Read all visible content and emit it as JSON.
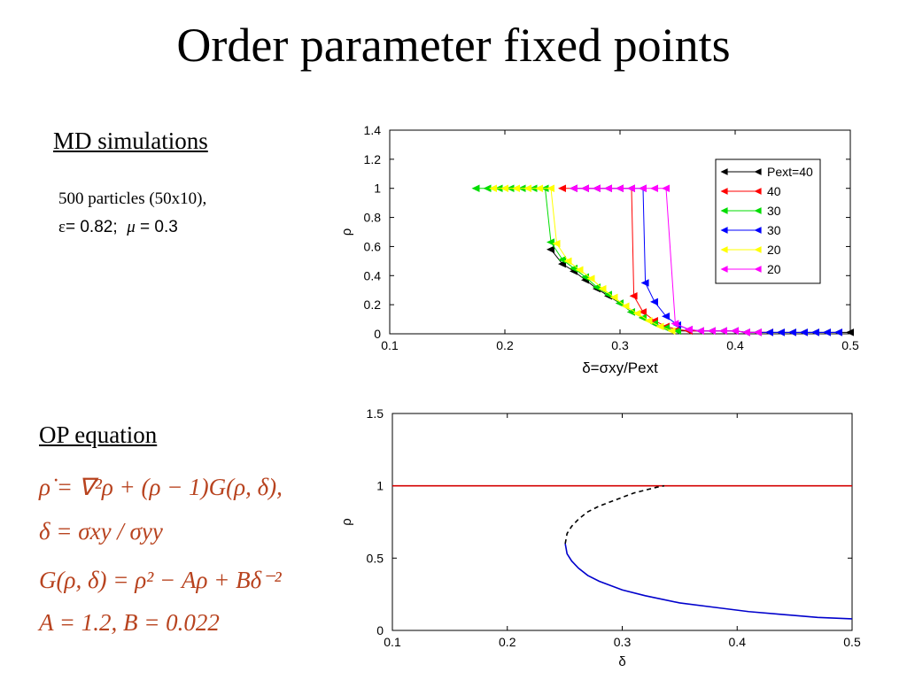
{
  "title": "Order parameter fixed points",
  "md": {
    "heading": "MD simulations",
    "line1": "500 particles (50x10),",
    "line2_eps": "ε",
    "line2_rest": "= 0.82;",
    "line2_mu": "μ",
    "line2_mu_val": "= 0.3"
  },
  "op": {
    "heading": "OP equation",
    "eq1": "ρ̇ = ∇²ρ + (ρ − 1)G(ρ, δ),",
    "eq2": "δ = σxy / σyy",
    "eq3": "G(ρ, δ) = ρ² − Aρ + Bδ⁻²",
    "eq4": "A = 1.2, B = 0.022"
  },
  "chart_data": [
    {
      "type": "scatter",
      "xlabel": "δ=σxy/Pext",
      "ylabel": "ρ",
      "xlim": [
        0.1,
        0.5
      ],
      "ylim": [
        0,
        1.4
      ],
      "xticks": [
        "0.1",
        "0.2",
        "0.3",
        "0.4",
        "0.5"
      ],
      "yticks": [
        "0",
        "0.2",
        "0.4",
        "0.6",
        "0.8",
        "1",
        "1.2",
        "1.4"
      ],
      "legend_position": "top-right",
      "series": [
        {
          "name": "Pext=40",
          "color": "#000000",
          "x": [
            0.24,
            0.25,
            0.26,
            0.27,
            0.28,
            0.29,
            0.3,
            0.31,
            0.32,
            0.33,
            0.34,
            0.35,
            0.36,
            0.37,
            0.38,
            0.39,
            0.4,
            0.41,
            0.42,
            0.43,
            0.44,
            0.45,
            0.46,
            0.47,
            0.48,
            0.49,
            0.5
          ],
          "y": [
            0.58,
            0.48,
            0.43,
            0.37,
            0.31,
            0.26,
            0.21,
            0.15,
            0.11,
            0.07,
            0.04,
            0.02,
            0.02,
            0.02,
            0.02,
            0.02,
            0.02,
            0.01,
            0.01,
            0.01,
            0.01,
            0.01,
            0.01,
            0.01,
            0.01,
            0.01,
            0.01
          ]
        },
        {
          "name": "40",
          "color": "#ff0000",
          "x": [
            0.25,
            0.26,
            0.27,
            0.28,
            0.29,
            0.3,
            0.31,
            0.312,
            0.32,
            0.33,
            0.34,
            0.35,
            0.36,
            0.37,
            0.38,
            0.39,
            0.4,
            0.41,
            0.42,
            0.43
          ],
          "y": [
            1,
            1,
            1,
            1,
            1,
            1,
            1,
            0.26,
            0.15,
            0.09,
            0.05,
            0.03,
            0.02,
            0.02,
            0.02,
            0.02,
            0.02,
            0.01,
            0.01,
            0.01
          ]
        },
        {
          "name": "30",
          "color": "#00dd00",
          "x": [
            0.175,
            0.185,
            0.195,
            0.205,
            0.215,
            0.225,
            0.235,
            0.24,
            0.25,
            0.26,
            0.27,
            0.28,
            0.29,
            0.3,
            0.31,
            0.32,
            0.33,
            0.34,
            0.35
          ],
          "y": [
            1,
            1,
            1,
            1,
            1,
            1,
            1,
            0.63,
            0.51,
            0.45,
            0.39,
            0.32,
            0.27,
            0.21,
            0.15,
            0.11,
            0.07,
            0.04,
            0.02
          ]
        },
        {
          "name": "30",
          "color": "#0000ff",
          "x": [
            0.26,
            0.27,
            0.28,
            0.29,
            0.3,
            0.31,
            0.32,
            0.322,
            0.33,
            0.34,
            0.35,
            0.36,
            0.37,
            0.38,
            0.39,
            0.4,
            0.41,
            0.42,
            0.43,
            0.44,
            0.45,
            0.46,
            0.47,
            0.48,
            0.49
          ],
          "y": [
            1,
            1,
            1,
            1,
            1,
            1,
            1,
            0.35,
            0.22,
            0.12,
            0.06,
            0.03,
            0.02,
            0.02,
            0.02,
            0.02,
            0.01,
            0.01,
            0.01,
            0.01,
            0.01,
            0.01,
            0.01,
            0.01,
            0.01
          ]
        },
        {
          "name": "20",
          "color": "#ffff00",
          "x": [
            0.19,
            0.2,
            0.21,
            0.22,
            0.23,
            0.24,
            0.245,
            0.255,
            0.265,
            0.275,
            0.285,
            0.295,
            0.305,
            0.315,
            0.325,
            0.335,
            0.345
          ],
          "y": [
            1,
            1,
            1,
            1,
            1,
            1,
            0.62,
            0.5,
            0.44,
            0.38,
            0.31,
            0.25,
            0.19,
            0.14,
            0.09,
            0.05,
            0.02
          ]
        },
        {
          "name": "20",
          "color": "#ff00ff",
          "x": [
            0.26,
            0.27,
            0.28,
            0.29,
            0.3,
            0.31,
            0.32,
            0.33,
            0.34,
            0.348,
            0.36,
            0.37,
            0.38,
            0.39,
            0.4,
            0.41,
            0.42
          ],
          "y": [
            1,
            1,
            1,
            1,
            1,
            1,
            1,
            1,
            1,
            0.07,
            0.03,
            0.02,
            0.02,
            0.02,
            0.02,
            0.01,
            0.01
          ]
        }
      ]
    },
    {
      "type": "line",
      "xlabel": "δ",
      "ylabel": "ρ",
      "xlim": [
        0.1,
        0.5
      ],
      "ylim": [
        0,
        1.5
      ],
      "xticks": [
        "0.1",
        "0.2",
        "0.3",
        "0.4",
        "0.5"
      ],
      "yticks": [
        "0",
        "0.5",
        "1",
        "1.5"
      ],
      "series": [
        {
          "color": "#d40000",
          "x": [
            0.1,
            0.5
          ],
          "y": [
            1,
            1
          ]
        },
        {
          "color": "#000000",
          "dashed": true,
          "x": [
            0.2504,
            0.252,
            0.256,
            0.262,
            0.27,
            0.28,
            0.29,
            0.3,
            0.31,
            0.32,
            0.33,
            0.3366
          ],
          "y": [
            0.6,
            0.67,
            0.72,
            0.77,
            0.82,
            0.86,
            0.89,
            0.92,
            0.95,
            0.97,
            0.99,
            1.0
          ]
        },
        {
          "color": "#0000cc",
          "x": [
            0.2504,
            0.252,
            0.256,
            0.262,
            0.27,
            0.28,
            0.3,
            0.32,
            0.35,
            0.38,
            0.41,
            0.44,
            0.47,
            0.5
          ],
          "y": [
            0.6,
            0.53,
            0.48,
            0.43,
            0.38,
            0.34,
            0.28,
            0.24,
            0.19,
            0.16,
            0.13,
            0.11,
            0.09,
            0.08
          ]
        }
      ]
    }
  ]
}
